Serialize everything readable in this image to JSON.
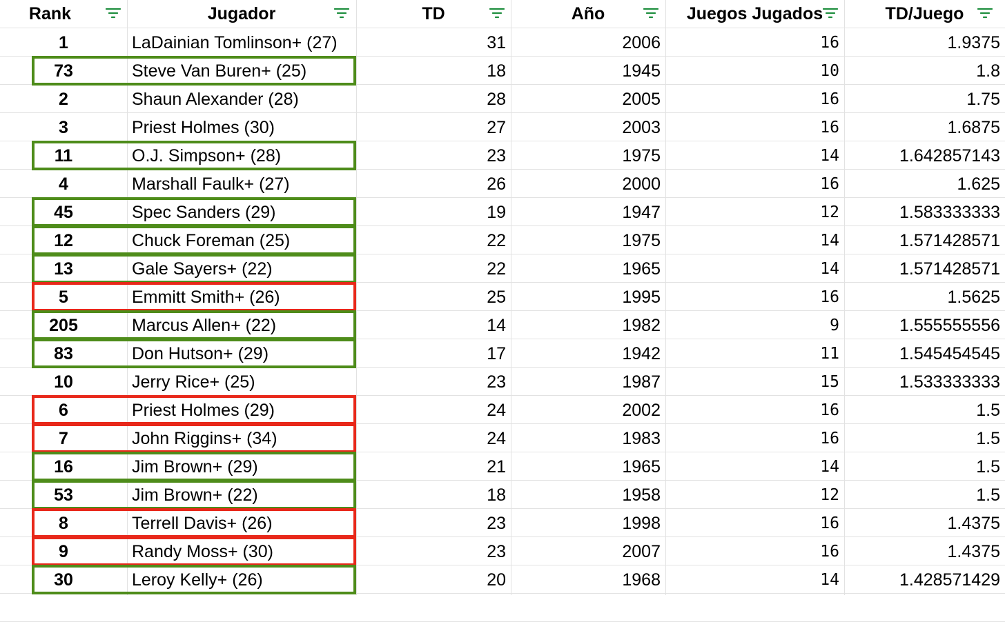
{
  "headers": [
    "Rank",
    "Jugador",
    "TD",
    "Año",
    "Juegos Jugados",
    "TD/Juego"
  ],
  "filter_icon": "filter-icon",
  "colors": {
    "green": "#4e8c1a",
    "red": "#e8281a",
    "gridline": "#e2e2e2",
    "filter_icon": "#1e8e3e"
  },
  "rows": [
    {
      "rank": "1",
      "player": "LaDainian Tomlinson+ (27)",
      "td": "31",
      "year": "2006",
      "games": "16",
      "td_per_game": "1.9375",
      "highlight": "none"
    },
    {
      "rank": "73",
      "player": "Steve Van Buren+ (25)",
      "td": "18",
      "year": "1945",
      "games": "10",
      "td_per_game": "1.8",
      "highlight": "green"
    },
    {
      "rank": "2",
      "player": "Shaun Alexander (28)",
      "td": "28",
      "year": "2005",
      "games": "16",
      "td_per_game": "1.75",
      "highlight": "none"
    },
    {
      "rank": "3",
      "player": "Priest Holmes (30)",
      "td": "27",
      "year": "2003",
      "games": "16",
      "td_per_game": "1.6875",
      "highlight": "none"
    },
    {
      "rank": "11",
      "player": "O.J. Simpson+ (28)",
      "td": "23",
      "year": "1975",
      "games": "14",
      "td_per_game": "1.642857143",
      "highlight": "green"
    },
    {
      "rank": "4",
      "player": "Marshall Faulk+ (27)",
      "td": "26",
      "year": "2000",
      "games": "16",
      "td_per_game": "1.625",
      "highlight": "none"
    },
    {
      "rank": "45",
      "player": "Spec Sanders (29)",
      "td": "19",
      "year": "1947",
      "games": "12",
      "td_per_game": "1.583333333",
      "highlight": "green"
    },
    {
      "rank": "12",
      "player": "Chuck Foreman (25)",
      "td": "22",
      "year": "1975",
      "games": "14",
      "td_per_game": "1.571428571",
      "highlight": "green"
    },
    {
      "rank": "13",
      "player": "Gale Sayers+ (22)",
      "td": "22",
      "year": "1965",
      "games": "14",
      "td_per_game": "1.571428571",
      "highlight": "green"
    },
    {
      "rank": "5",
      "player": "Emmitt Smith+ (26)",
      "td": "25",
      "year": "1995",
      "games": "16",
      "td_per_game": "1.5625",
      "highlight": "red"
    },
    {
      "rank": "205",
      "player": "Marcus Allen+ (22)",
      "td": "14",
      "year": "1982",
      "games": "9",
      "td_per_game": "1.555555556",
      "highlight": "green"
    },
    {
      "rank": "83",
      "player": "Don Hutson+ (29)",
      "td": "17",
      "year": "1942",
      "games": "11",
      "td_per_game": "1.545454545",
      "highlight": "green"
    },
    {
      "rank": "10",
      "player": "Jerry Rice+ (25)",
      "td": "23",
      "year": "1987",
      "games": "15",
      "td_per_game": "1.533333333",
      "highlight": "none"
    },
    {
      "rank": "6",
      "player": "Priest Holmes (29)",
      "td": "24",
      "year": "2002",
      "games": "16",
      "td_per_game": "1.5",
      "highlight": "red"
    },
    {
      "rank": "7",
      "player": "John Riggins+ (34)",
      "td": "24",
      "year": "1983",
      "games": "16",
      "td_per_game": "1.5",
      "highlight": "red"
    },
    {
      "rank": "16",
      "player": "Jim Brown+ (29)",
      "td": "21",
      "year": "1965",
      "games": "14",
      "td_per_game": "1.5",
      "highlight": "green"
    },
    {
      "rank": "53",
      "player": "Jim Brown+ (22)",
      "td": "18",
      "year": "1958",
      "games": "12",
      "td_per_game": "1.5",
      "highlight": "green"
    },
    {
      "rank": "8",
      "player": "Terrell Davis+ (26)",
      "td": "23",
      "year": "1998",
      "games": "16",
      "td_per_game": "1.4375",
      "highlight": "red"
    },
    {
      "rank": "9",
      "player": "Randy Moss+ (30)",
      "td": "23",
      "year": "2007",
      "games": "16",
      "td_per_game": "1.4375",
      "highlight": "red"
    },
    {
      "rank": "30",
      "player": "Leroy Kelly+ (26)",
      "td": "20",
      "year": "1968",
      "games": "14",
      "td_per_game": "1.428571429",
      "highlight": "green"
    }
  ]
}
